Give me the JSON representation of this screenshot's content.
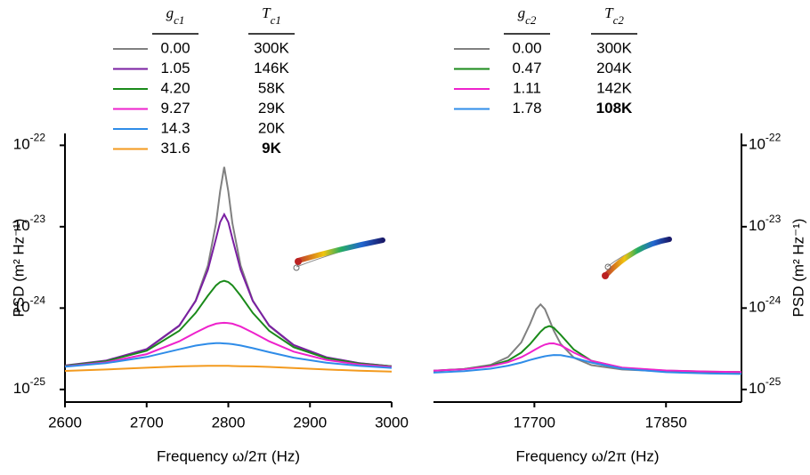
{
  "chart_data": [
    {
      "type": "line",
      "xlabel": "Frequency ω/2π (Hz)",
      "ylabel": "PSD (m² Hz⁻¹)",
      "log_y": true,
      "xlim": [
        2600,
        3000
      ],
      "xticks": [
        2600,
        2700,
        2800,
        2900,
        3000
      ],
      "ylim": [
        7e-26,
        1.4e-22
      ],
      "yticks": [
        {
          "value": 1e-25,
          "label": "10",
          "exponent": "-25"
        },
        {
          "value": 1e-24,
          "label": "10",
          "exponent": "-24"
        },
        {
          "value": 1e-23,
          "label": "10",
          "exponent": "-23"
        },
        {
          "value": 1e-22,
          "label": "10",
          "exponent": "-22"
        }
      ],
      "legend_headers": [
        {
          "symbol": "g",
          "subscript": "c1"
        },
        {
          "symbol": "T",
          "subscript": "c1"
        }
      ],
      "x": [
        2600,
        2650,
        2700,
        2740,
        2760,
        2775,
        2785,
        2790,
        2795,
        2800,
        2805,
        2815,
        2830,
        2850,
        2880,
        2920,
        2960,
        3000
      ],
      "series": [
        {
          "name": "0.00",
          "temperature": "300K",
          "color": "#808080",
          "values": [
            1.95e-25,
            2.24e-25,
            3.09e-25,
            6.03e-25,
            1.24e-24,
            3.34e-24,
            1.1e-23,
            2.72e-23,
            5.42e-23,
            2.72e-23,
            1.1e-23,
            3.34e-24,
            1.24e-24,
            6.03e-25,
            3.46e-25,
            2.46e-25,
            2.1e-25,
            1.92e-25
          ]
        },
        {
          "name": "1.05",
          "temperature": "146K",
          "color": "#7a1fa2",
          "values": [
            1.97e-25,
            2.26e-25,
            3.14e-25,
            6.12e-25,
            1.22e-24,
            2.96e-24,
            7.16e-24,
            1.136e-23,
            1.416e-23,
            1.136e-23,
            7.16e-24,
            2.96e-24,
            1.22e-24,
            6.12e-25,
            3.52e-25,
            2.49e-25,
            2.11e-25,
            1.93e-25
          ]
        },
        {
          "name": "4.20",
          "temperature": "58K",
          "color": "#1a8a1a",
          "values": [
            1.95e-25,
            2.22e-25,
            2.99e-25,
            5.26e-25,
            8.72e-25,
            1.42e-24,
            1.9e-24,
            2.09e-24,
            2.16e-24,
            2.09e-24,
            1.9e-24,
            1.42e-24,
            8.72e-25,
            5.26e-25,
            3.31e-25,
            2.43e-25,
            2.08e-25,
            1.92e-25
          ]
        },
        {
          "name": "9.27",
          "temperature": "29K",
          "color": "#ee22cc",
          "values": [
            1.92e-25,
            2.15e-25,
            2.72e-25,
            3.91e-25,
            5e-25,
            5.93e-25,
            6.42e-25,
            6.55e-25,
            6.6e-25,
            6.55e-25,
            6.42e-25,
            5.93e-25,
            5e-25,
            3.91e-25,
            2.92e-25,
            2.31e-25,
            2.03e-25,
            1.89e-25
          ]
        },
        {
          "name": "14.3",
          "temperature": "20K",
          "color": "#2f8ce8",
          "values": [
            1.9e-25,
            2.1e-25,
            2.51e-25,
            3.11e-25,
            3.46e-25,
            3.64e-25,
            3.7e-25,
            3.7e-25,
            3.68e-25,
            3.65e-25,
            3.6e-25,
            3.47e-25,
            3.22e-25,
            2.87e-25,
            2.46e-25,
            2.13e-25,
            1.95e-25,
            1.84e-25
          ]
        },
        {
          "name": "31.6",
          "temperature": "9K",
          "color": "#f39a1e",
          "values": [
            1.69e-25,
            1.76e-25,
            1.85e-25,
            1.92e-25,
            1.94e-25,
            1.95e-25,
            1.95e-25,
            1.95e-25,
            1.95e-25,
            1.95e-25,
            1.94e-25,
            1.93e-25,
            1.92e-25,
            1.89e-25,
            1.83e-25,
            1.76e-25,
            1.7e-25,
            1.66e-25
          ]
        }
      ]
    },
    {
      "type": "line",
      "xlabel": "Frequency ω/2π (Hz)",
      "ylabel": "PSD (m² Hz⁻¹)",
      "log_y": true,
      "xlim": [
        17585,
        17936
      ],
      "xticks": [
        17700,
        17850
      ],
      "ylim": [
        7e-26,
        1.4e-22
      ],
      "yticks": [
        {
          "value": 1e-25,
          "label": "10",
          "exponent": "-25"
        },
        {
          "value": 1e-24,
          "label": "10",
          "exponent": "-24"
        },
        {
          "value": 1e-23,
          "label": "10",
          "exponent": "-23"
        },
        {
          "value": 1e-22,
          "label": "10",
          "exponent": "-22"
        }
      ],
      "legend_headers": [
        {
          "symbol": "g",
          "subscript": "c2"
        },
        {
          "symbol": "T",
          "subscript": "c2"
        }
      ],
      "x": [
        17585,
        17620,
        17650,
        17670,
        17685,
        17695,
        17702,
        17707,
        17712,
        17717,
        17722,
        17730,
        17745,
        17765,
        17800,
        17850,
        17900,
        17936
      ],
      "series": [
        {
          "name": "0.00",
          "temperature": "300K",
          "color": "#808080",
          "values": [
            1.69e-25,
            1.78e-25,
            2e-25,
            2.5e-25,
            3.78e-25,
            6.35e-25,
            9.69e-25,
            1.11e-24,
            9.69e-25,
            7.21e-25,
            5.31e-25,
            3.63e-25,
            2.46e-25,
            1.99e-25,
            1.76e-25,
            1.67e-25,
            1.64e-25,
            1.63e-25
          ]
        },
        {
          "name": "0.47",
          "temperature": "204K",
          "color": "#1a8a1a",
          "values": [
            1.7e-25,
            1.78e-25,
            1.96e-25,
            2.27e-25,
            2.84e-25,
            3.59e-25,
            4.42e-25,
            5.12e-25,
            5.74e-25,
            6e-25,
            5.74e-25,
            4.69e-25,
            3.09e-25,
            2.25e-25,
            1.84e-25,
            1.7e-25,
            1.65e-25,
            1.64e-25
          ]
        },
        {
          "name": "1.11",
          "temperature": "142K",
          "color": "#ee22cc",
          "values": [
            1.7e-25,
            1.77e-25,
            1.93e-25,
            2.16e-25,
            2.49e-25,
            2.84e-25,
            3.14e-25,
            3.37e-25,
            3.56e-25,
            3.68e-25,
            3.69e-25,
            3.49e-25,
            2.84e-25,
            2.25e-25,
            1.86e-25,
            1.71e-25,
            1.66e-25,
            1.64e-25
          ]
        },
        {
          "name": "1.78",
          "temperature": "108K",
          "color": "#2f8ce8",
          "values": [
            1.61e-25,
            1.68e-25,
            1.8e-25,
            1.96e-25,
            2.14e-25,
            2.3e-25,
            2.41e-25,
            2.49e-25,
            2.56e-25,
            2.61e-25,
            2.65e-25,
            2.64e-25,
            2.46e-25,
            2.14e-25,
            1.8e-25,
            1.63e-25,
            1.57e-25,
            1.55e-25
          ]
        }
      ]
    }
  ]
}
